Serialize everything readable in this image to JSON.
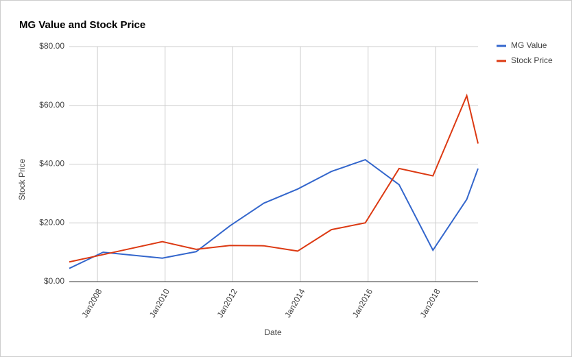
{
  "chart_data": {
    "type": "line",
    "title": "MG Value and Stock Price",
    "x_label": "Date",
    "y_label": "Stock Price",
    "x": [
      "2007-03",
      "2008-03",
      "2009-12",
      "2010-12",
      "2011-12",
      "2012-12",
      "2013-12",
      "2014-12",
      "2015-12",
      "2016-12",
      "2017-12",
      "2018-12",
      "2019-04"
    ],
    "series": [
      {
        "name": "MG Value",
        "color": "#3366cc",
        "values": [
          4.5,
          10,
          8,
          10.2,
          19,
          26.7,
          31.5,
          37.5,
          41.5,
          33,
          10.7,
          28,
          38.5
        ]
      },
      {
        "name": "Stock Price",
        "color": "#dc3912",
        "values": [
          6.7,
          9.2,
          13.6,
          11,
          12.3,
          12.2,
          10.4,
          17.7,
          20,
          38.5,
          36,
          63.3,
          47
        ]
      }
    ],
    "xlim": [
      "2007-03",
      "2019-04"
    ],
    "xticks": [
      {
        "value": "2008-01",
        "label": "Jan2008"
      },
      {
        "value": "2010-01",
        "label": "Jan2010"
      },
      {
        "value": "2012-01",
        "label": "Jan2012"
      },
      {
        "value": "2014-01",
        "label": "Jan2014"
      },
      {
        "value": "2016-01",
        "label": "Jan2016"
      },
      {
        "value": "2018-01",
        "label": "Jan2018"
      }
    ],
    "ylim": [
      0,
      80
    ],
    "yticks": [
      {
        "value": 0,
        "label": "$0.00"
      },
      {
        "value": 20,
        "label": "$20.00"
      },
      {
        "value": 40,
        "label": "$40.00"
      },
      {
        "value": 60,
        "label": "$60.00"
      },
      {
        "value": 80,
        "label": "$80.00"
      }
    ],
    "grid": true,
    "legend": "right"
  }
}
